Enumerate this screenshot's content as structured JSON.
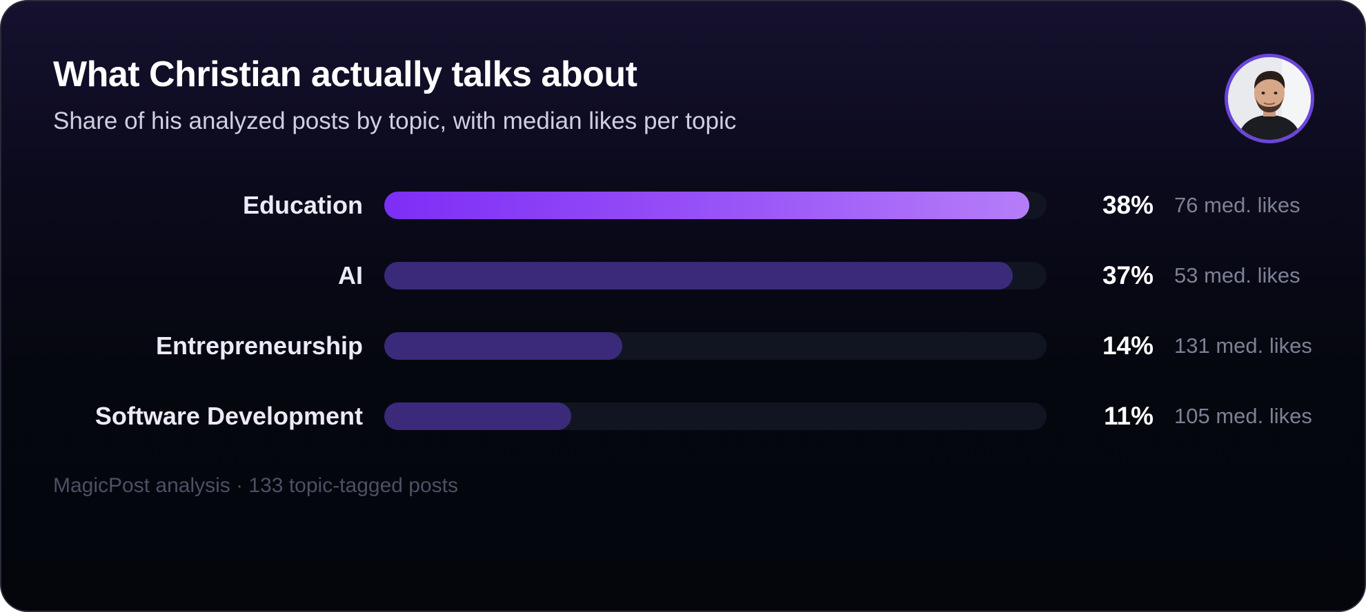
{
  "header": {
    "title": "What Christian actually talks about",
    "subtitle": "Share of his analyzed posts by topic, with median likes per topic"
  },
  "footer": {
    "text": "MagicPost analysis · 133 topic-tagged posts"
  },
  "colors": {
    "highlight_start": "#7d2ef6",
    "highlight_end": "#b57df9",
    "bar_default": "#3b2a7a",
    "track": "#111521",
    "avatar_ring": "#6a46d8"
  },
  "chart_data": {
    "type": "bar",
    "orientation": "horizontal",
    "title": "What Christian actually talks about",
    "subtitle": "Share of his analyzed posts by topic, with median likes per topic",
    "categories": [
      "Education",
      "AI",
      "Entrepreneurship",
      "Software Development"
    ],
    "values": [
      38,
      37,
      14,
      11
    ],
    "value_labels": [
      "38%",
      "37%",
      "14%",
      "11%"
    ],
    "annotations": [
      "76 med. likes",
      "53 med. likes",
      "131 med. likes",
      "105 med. likes"
    ],
    "median_likes": [
      76,
      53,
      131,
      105
    ],
    "xlim": [
      0,
      39
    ],
    "grid": false,
    "legend": "none"
  }
}
